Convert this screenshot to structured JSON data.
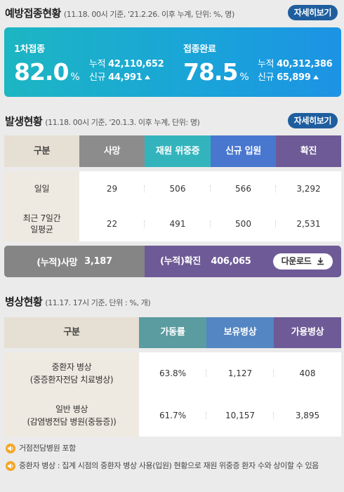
{
  "vaccination": {
    "title": "예방접종현황",
    "note": "(11.18. 00시 기준, '21.2.26. 이후 누계, 단위: %, 명)",
    "more": "자세히보기",
    "first": {
      "label": "1차접종",
      "rate": "82.0",
      "unit": "%",
      "cum_label": "누적",
      "cum_value": "42,110,652",
      "new_label": "신규",
      "new_value": "44,991"
    },
    "full": {
      "label": "접종완료",
      "rate": "78.5",
      "unit": "%",
      "cum_label": "누적",
      "cum_value": "40,312,386",
      "new_label": "신규",
      "new_value": "65,899"
    }
  },
  "occurrence": {
    "title": "발생현황",
    "note": "(11.18. 00시 기준, '20.1.3. 이후 누계, 단위: 명)",
    "more": "자세히보기",
    "headers": [
      "구분",
      "사망",
      "재원 위중증",
      "신규 입원",
      "확진"
    ],
    "rows": [
      {
        "label": "일일",
        "values": [
          "29",
          "506",
          "566",
          "3,292"
        ]
      },
      {
        "label": "최근 7일간\n일평균",
        "values": [
          "22",
          "491",
          "500",
          "2,531"
        ]
      }
    ],
    "total_death_label": "(누적)사망",
    "total_death_value": "3,187",
    "total_confirmed_label": "(누적)확진",
    "total_confirmed_value": "406,065",
    "download": "다운로드"
  },
  "beds": {
    "title": "병상현황",
    "note": "(11.17. 17시 기준, 단위 : %, 개)",
    "headers": [
      "구분",
      "가동률",
      "보유병상",
      "가용병상"
    ],
    "rows": [
      {
        "label": "중환자 병상\n(중증환자전담 치료병상)",
        "values": [
          "63.8%",
          "1,127",
          "408"
        ]
      },
      {
        "label": "일반 병상\n(감염병전담 병원(중등증))",
        "values": [
          "61.7%",
          "10,157",
          "3,895"
        ]
      }
    ]
  },
  "notes": [
    "거점전담병원 포함",
    "중환자 병상 : 집계 시점의 중환자 병상 사용(입원) 현황으로 재원 위중증 환자 수와 상이할 수 있음"
  ],
  "colors": {
    "button_blue": "#1f5e9e",
    "occ_header": [
      "#e6dfd3",
      "#8c8c8c",
      "#33b4bd",
      "#4977cf",
      "#6d5a96"
    ],
    "bed_header": [
      "#e6dfd3",
      "#5a9ca0",
      "#5386c2",
      "#6d5a96"
    ],
    "speaker": "#f5a623"
  }
}
